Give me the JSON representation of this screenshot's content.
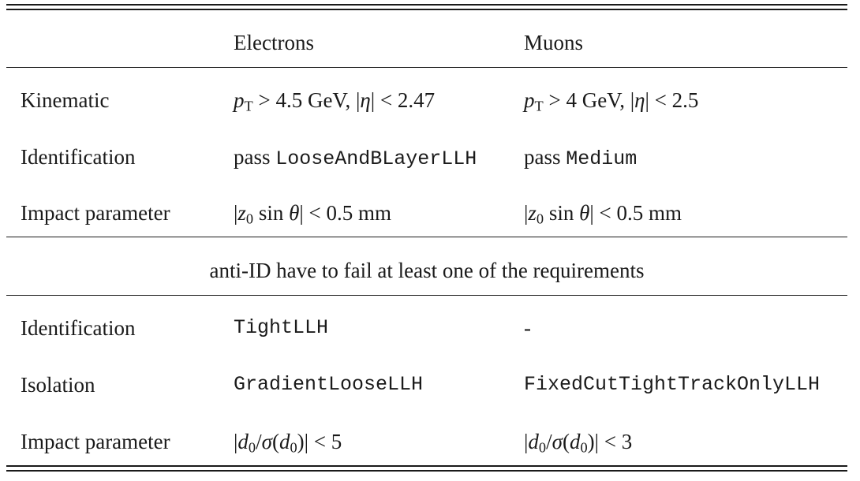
{
  "header": {
    "col1": "Electrons",
    "col2": "Muons"
  },
  "section1": {
    "kinematic": {
      "label": "Kinematic",
      "electrons": {
        "pt_sym": "p",
        "pt_sub": "T",
        "pt_cut": " > 4.5 GeV, |",
        "eta_sym": "η",
        "eta_cut": "| < 2.47"
      },
      "muons": {
        "pt_sym": "p",
        "pt_sub": "T",
        "pt_cut": " > 4 GeV, |",
        "eta_sym": "η",
        "eta_cut": "| < 2.5"
      }
    },
    "identification": {
      "label": "Identification",
      "electrons": {
        "prefix": "pass ",
        "wp": "LooseAndBLayerLLH"
      },
      "muons": {
        "prefix": "pass ",
        "wp": "Medium"
      }
    },
    "impact": {
      "label": "Impact parameter",
      "electrons": {
        "open": "|",
        "z_sym": "z",
        "z_sub": "0",
        "sin": " sin ",
        "theta": "θ",
        "cut": "| < 0.5 mm"
      },
      "muons": {
        "open": "|",
        "z_sym": "z",
        "z_sub": "0",
        "sin": " sin ",
        "theta": "θ",
        "cut": "| < 0.5 mm"
      }
    }
  },
  "anti_id_note": "anti-ID have to fail at least one of the requirements",
  "section2": {
    "identification": {
      "label": "Identification",
      "electrons": "TightLLH",
      "muons": "-"
    },
    "isolation": {
      "label": "Isolation",
      "electrons": "GradientLooseLLH",
      "muons": "FixedCutTightTrackOnlyLLH"
    },
    "impact": {
      "label": "Impact parameter",
      "electrons": {
        "open": "|",
        "d_sym": "d",
        "d_sub": "0",
        "slash": "/",
        "sigma": "σ",
        "paren_open": "(",
        "d2_sym": "d",
        "d2_sub": "0",
        "paren_close": ")",
        "cut": "| < 5"
      },
      "muons": {
        "open": "|",
        "d_sym": "d",
        "d_sub": "0",
        "slash": "/",
        "sigma": "σ",
        "paren_open": "(",
        "d2_sym": "d",
        "d2_sub": "0",
        "paren_close": ")",
        "cut": "| < 3"
      }
    }
  }
}
